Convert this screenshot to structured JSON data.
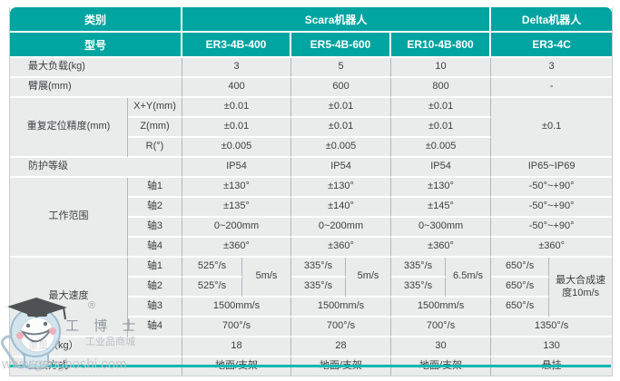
{
  "colors": {
    "header_teal": "#00a4a0",
    "accent_line": "#00b7b3",
    "cell_bg": "#eaebeb",
    "grid_line": "#b2b7ba",
    "header_text": "#ffffff",
    "body_text": "#3d3f40"
  },
  "table": {
    "header_rows": [
      {
        "n": "row-category",
        "cells": [
          {
            "t": "类别",
            "cs": 2
          },
          {
            "t": "Scara机器人",
            "cs": 6
          },
          {
            "t": "Delta机器人",
            "cs": 2,
            "cls": "edge"
          }
        ]
      },
      {
        "n": "row-model",
        "cells": [
          {
            "t": "型号",
            "cs": 2
          },
          {
            "t": "ER3-4B-400",
            "cs": 2
          },
          {
            "t": "ER5-4B-600",
            "cs": 2
          },
          {
            "t": "ER10-4B-800",
            "cs": 2
          },
          {
            "t": "ER3-4C",
            "cs": 2,
            "cls": "edge"
          }
        ]
      }
    ],
    "rows": [
      {
        "n": "row-max-payload",
        "cells": [
          {
            "t": "最大负载(kg)",
            "cs": 2,
            "cls": "lbl"
          },
          {
            "t": "3",
            "cs": 2
          },
          {
            "t": "5",
            "cs": 2
          },
          {
            "t": "10",
            "cs": 2
          },
          {
            "t": "3",
            "cs": 2,
            "cls": "edge"
          }
        ]
      },
      {
        "n": "row-arm-reach",
        "cells": [
          {
            "t": "臂展(mm)",
            "cs": 2,
            "cls": "lbl"
          },
          {
            "t": "400",
            "cs": 2
          },
          {
            "t": "600",
            "cs": 2
          },
          {
            "t": "800",
            "cs": 2
          },
          {
            "t": "-",
            "cs": 2,
            "cls": "edge"
          }
        ]
      },
      {
        "n": "row-repeatability-xy",
        "cells": [
          {
            "t": "重复定位精度(mm)",
            "rs": 3,
            "cls": "glbl"
          },
          {
            "t": "X+Y(mm)",
            "cls": "slbl"
          },
          {
            "t": "±0.01",
            "cs": 2
          },
          {
            "t": "±0.01",
            "cs": 2
          },
          {
            "t": "±0.01",
            "cs": 2
          },
          {
            "t": "±0.1",
            "cs": 2,
            "rs": 3,
            "cls": "edge"
          }
        ]
      },
      {
        "n": "row-repeatability-z",
        "cells": [
          {
            "t": "Z(mm)",
            "cls": "slbl"
          },
          {
            "t": "±0.01",
            "cs": 2
          },
          {
            "t": "±0.01",
            "cs": 2
          },
          {
            "t": "±0.01",
            "cs": 2
          }
        ]
      },
      {
        "n": "row-repeatability-r",
        "cells": [
          {
            "t": "R(°)",
            "cls": "slbl"
          },
          {
            "t": "±0.005",
            "cs": 2
          },
          {
            "t": "±0.005",
            "cs": 2
          },
          {
            "t": "±0.005",
            "cs": 2
          }
        ]
      },
      {
        "n": "row-ip-rating",
        "cells": [
          {
            "t": "防护等级",
            "cs": 2,
            "cls": "lbl"
          },
          {
            "t": "IP54",
            "cs": 2
          },
          {
            "t": "IP54",
            "cs": 2
          },
          {
            "t": "IP54",
            "cs": 2
          },
          {
            "t": "IP65~IP69",
            "cs": 2,
            "cls": "edge"
          }
        ]
      },
      {
        "n": "row-range-axis1",
        "cells": [
          {
            "t": "工作范围",
            "rs": 4,
            "cls": "glbl"
          },
          {
            "t": "轴1",
            "cls": "slbl"
          },
          {
            "t": "±130°",
            "cs": 2
          },
          {
            "t": "±130°",
            "cs": 2
          },
          {
            "t": "±130°",
            "cs": 2
          },
          {
            "t": "-50°~+90°",
            "cs": 2,
            "cls": "edge"
          }
        ]
      },
      {
        "n": "row-range-axis2",
        "cells": [
          {
            "t": "轴2",
            "cls": "slbl"
          },
          {
            "t": "±135°",
            "cs": 2
          },
          {
            "t": "±140°",
            "cs": 2
          },
          {
            "t": "±145°",
            "cs": 2
          },
          {
            "t": "-50°~+90°",
            "cs": 2,
            "cls": "edge"
          }
        ]
      },
      {
        "n": "row-range-axis3",
        "cells": [
          {
            "t": "轴3",
            "cls": "slbl"
          },
          {
            "t": "0~200mm",
            "cs": 2
          },
          {
            "t": "0~200mm",
            "cs": 2
          },
          {
            "t": "0~300mm",
            "cs": 2
          },
          {
            "t": "-50°~+90°",
            "cs": 2,
            "cls": "edge"
          }
        ]
      },
      {
        "n": "row-range-axis4",
        "cells": [
          {
            "t": "轴4",
            "cls": "slbl"
          },
          {
            "t": "±360°",
            "cs": 2
          },
          {
            "t": "±360°",
            "cs": 2
          },
          {
            "t": "±360°",
            "cs": 2
          },
          {
            "t": "±360°",
            "cs": 2,
            "cls": "edge"
          }
        ]
      },
      {
        "n": "row-speed-axis1",
        "cells": [
          {
            "t": "最大速度",
            "rs": 4,
            "cls": "glbl"
          },
          {
            "t": "轴1",
            "cls": "slbl"
          },
          {
            "t": "525°/s"
          },
          {
            "t": "5m/s",
            "rs": 2
          },
          {
            "t": "335°/s"
          },
          {
            "t": "5m/s",
            "rs": 2
          },
          {
            "t": "335°/s"
          },
          {
            "t": "6.5m/s",
            "rs": 2
          },
          {
            "t": "650°/s"
          },
          {
            "t": "最大合成速度10m/s",
            "rs": 3,
            "cls": "edge wrap"
          }
        ]
      },
      {
        "n": "row-speed-axis2",
        "cells": [
          {
            "t": "轴2",
            "cls": "slbl"
          },
          {
            "t": "525°/s"
          },
          {
            "t": "335°/s"
          },
          {
            "t": "335°/s"
          },
          {
            "t": "650°/s"
          }
        ]
      },
      {
        "n": "row-speed-axis3",
        "cells": [
          {
            "t": "轴3",
            "cls": "slbl"
          },
          {
            "t": "1500mm/s",
            "cs": 2
          },
          {
            "t": "1500mm/s",
            "cs": 2
          },
          {
            "t": "1500mm/s",
            "cs": 2
          },
          {
            "t": "650°/s"
          }
        ]
      },
      {
        "n": "row-speed-axis4",
        "cells": [
          {
            "t": "轴4",
            "cls": "slbl"
          },
          {
            "t": "700°/s",
            "cs": 2
          },
          {
            "t": "700°/s",
            "cs": 2
          },
          {
            "t": "700°/s",
            "cs": 2
          },
          {
            "t": "1350°/s",
            "cs": 2,
            "cls": "edge"
          }
        ]
      },
      {
        "n": "row-weight",
        "cells": [
          {
            "t": "重量（kg）",
            "cs": 2,
            "cls": "lbl"
          },
          {
            "t": "18",
            "cs": 2
          },
          {
            "t": "28",
            "cs": 2
          },
          {
            "t": "30",
            "cs": 2
          },
          {
            "t": "130",
            "cs": 2,
            "cls": "edge"
          }
        ]
      },
      {
        "n": "row-mounting",
        "cells": [
          {
            "t": "安装方式",
            "cs": 2,
            "cls": "lbl"
          },
          {
            "t": "地面/支架",
            "cs": 2
          },
          {
            "t": "地面/支架",
            "cs": 2
          },
          {
            "t": "地面/支架",
            "cs": 2
          },
          {
            "t": "悬挂",
            "cs": 2,
            "cls": "edge"
          }
        ]
      }
    ]
  },
  "watermark": {
    "registered": "®",
    "brand": "工 博 士",
    "tagline": "工业品商城",
    "url": "www.gongboshi.com"
  }
}
